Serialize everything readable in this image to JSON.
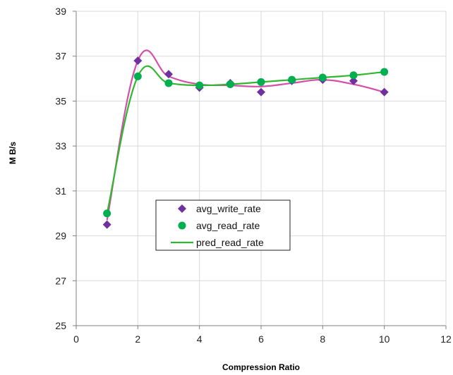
{
  "chart_data": {
    "type": "scatter",
    "xlabel": "Compression Ratio",
    "ylabel": "M B/s",
    "xlim": [
      0,
      12
    ],
    "ylim": [
      25,
      39
    ],
    "x_ticks": [
      0,
      2,
      4,
      6,
      8,
      10,
      12
    ],
    "y_ticks": [
      25,
      27,
      29,
      31,
      33,
      35,
      37,
      39
    ],
    "grid": true,
    "legend_position": "center-left",
    "series": [
      {
        "name": "avg_write_rate",
        "marker": "diamond",
        "color": "#7030a0",
        "x": [
          1,
          2,
          3,
          4,
          5,
          6,
          7,
          8,
          9,
          10
        ],
        "y": [
          29.5,
          36.8,
          36.2,
          35.6,
          35.8,
          35.4,
          35.9,
          35.95,
          35.9,
          35.4
        ]
      },
      {
        "name": "avg_read_rate",
        "marker": "circle",
        "color": "#00b050",
        "x": [
          1,
          2,
          3,
          4,
          5,
          6,
          7,
          8,
          9,
          10
        ],
        "y": [
          30.0,
          36.1,
          35.8,
          35.7,
          35.75,
          35.85,
          35.95,
          36.05,
          36.15,
          36.3
        ]
      },
      {
        "name": "pred_read_rate",
        "line": true,
        "color": "#2fb82f",
        "x": [
          1,
          2,
          3,
          4,
          5,
          6,
          7,
          8,
          9,
          10
        ],
        "y": [
          30.0,
          36.1,
          35.8,
          35.7,
          35.75,
          35.85,
          35.95,
          36.05,
          36.15,
          36.3
        ]
      },
      {
        "name": "",
        "line": true,
        "color": "#d44fa8",
        "x": [
          1,
          2,
          3,
          4,
          5,
          6,
          7,
          8,
          9,
          10
        ],
        "y": [
          29.7,
          36.8,
          36.1,
          35.75,
          35.7,
          35.65,
          35.8,
          35.95,
          35.75,
          35.4
        ]
      }
    ]
  }
}
